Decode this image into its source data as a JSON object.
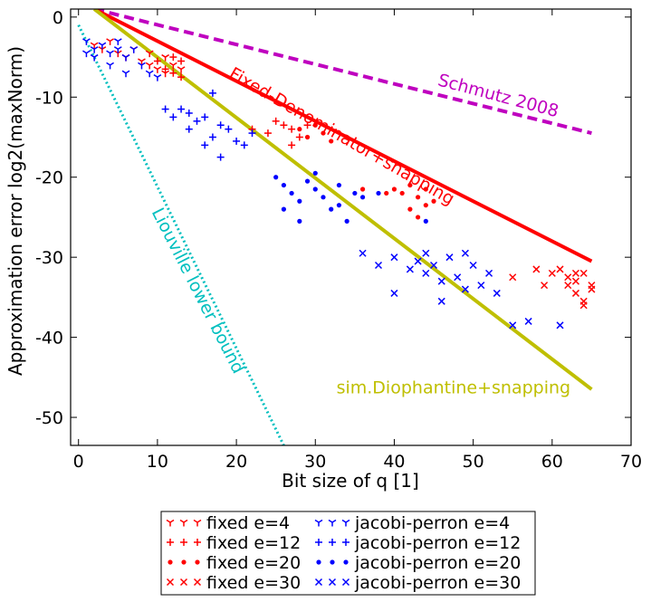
{
  "chart_data": {
    "type": "scatter",
    "title": "",
    "xlabel": "Bit size of q [1]",
    "ylabel": "Approximation error log2(maxNorm)",
    "xlim": [
      -1,
      70
    ],
    "ylim": [
      -53.5,
      1
    ],
    "xticks": [
      0,
      10,
      20,
      30,
      40,
      50,
      60,
      70
    ],
    "yticks": [
      0,
      -10,
      -20,
      -30,
      -40,
      -50
    ],
    "grid": false,
    "legend_position": "below",
    "lines": [
      {
        "name": "Schmutz 2008",
        "label": "Schmutz 2008",
        "color": "#bf00bf",
        "style": "dashed",
        "x": [
          2,
          65
        ],
        "y": [
          1,
          -14.5
        ],
        "label_x": 53,
        "label_y": -10.5,
        "label_rotate": 15
      },
      {
        "name": "Fixed-Denominator+snapping",
        "label": "Fixed-Denominator+snapping",
        "color": "#ff0000",
        "style": "solid",
        "x": [
          2,
          65
        ],
        "y": [
          1,
          -30.5
        ],
        "label_x": 33,
        "label_y": -15.5,
        "label_rotate": 30
      },
      {
        "name": "sim.Diophantine+snapping",
        "label": "sim.Diophantine+snapping",
        "color": "#bfbf00",
        "style": "solid",
        "x": [
          2,
          65
        ],
        "y": [
          1,
          -46.5
        ],
        "label_x": 47.5,
        "label_y": -47,
        "label_rotate": 0
      },
      {
        "name": "Liouville lower bound",
        "label": "Liouville lower bound",
        "color": "#00bfbf",
        "style": "dotted",
        "x": [
          0,
          26
        ],
        "y": [
          -1,
          -53.5
        ],
        "label_x": 14.5,
        "label_y": -34.5,
        "label_rotate": 63
      }
    ],
    "series": [
      {
        "name": "fixed e=4",
        "marker": "tri_down",
        "color": "#ff0000",
        "points": [
          [
            2,
            -3.5
          ],
          [
            3,
            -4
          ],
          [
            4,
            -3
          ],
          [
            5,
            -4.5
          ],
          [
            6,
            -5
          ],
          [
            7,
            -4
          ],
          [
            8,
            -5.5
          ],
          [
            9,
            -6
          ],
          [
            10,
            -6.5
          ],
          [
            11,
            -5
          ],
          [
            12,
            -6
          ],
          [
            13,
            -6.5
          ],
          [
            9,
            -4.5
          ],
          [
            11,
            -7
          ]
        ]
      },
      {
        "name": "fixed e=12",
        "marker": "plus",
        "color": "#ff0000",
        "points": [
          [
            10,
            -5.5
          ],
          [
            11,
            -6.5
          ],
          [
            12,
            -7
          ],
          [
            13,
            -5.5
          ],
          [
            22,
            -14
          ],
          [
            24,
            -14.5
          ],
          [
            25,
            -13
          ],
          [
            26,
            -13.5
          ],
          [
            27,
            -14
          ],
          [
            28,
            -15
          ],
          [
            29,
            -13.5
          ],
          [
            13,
            -7.5
          ],
          [
            12,
            -5
          ],
          [
            27,
            -16
          ]
        ]
      },
      {
        "name": "fixed e=20",
        "marker": "dot",
        "color": "#ff0000",
        "points": [
          [
            28,
            -14
          ],
          [
            29,
            -15
          ],
          [
            30,
            -13.5
          ],
          [
            31,
            -14.5
          ],
          [
            32,
            -15.5
          ],
          [
            40,
            -21.5
          ],
          [
            41,
            -22
          ],
          [
            42,
            -21
          ],
          [
            43,
            -22.5
          ],
          [
            44,
            -21.5
          ],
          [
            42,
            -24
          ],
          [
            43,
            -25
          ],
          [
            45,
            -23
          ],
          [
            39,
            -22
          ],
          [
            36,
            -21.5
          ],
          [
            44,
            -23.5
          ]
        ]
      },
      {
        "name": "fixed e=30",
        "marker": "x",
        "color": "#ff0000",
        "points": [
          [
            55,
            -32.5
          ],
          [
            58,
            -31.5
          ],
          [
            59,
            -33.5
          ],
          [
            60,
            -32
          ],
          [
            61,
            -31.5
          ],
          [
            62,
            -32.5
          ],
          [
            63,
            -33
          ],
          [
            64,
            -32
          ],
          [
            65,
            -34
          ],
          [
            63,
            -34.5
          ],
          [
            64,
            -35.5
          ],
          [
            64,
            -36
          ],
          [
            65,
            -33.5
          ],
          [
            62,
            -33.5
          ],
          [
            63,
            -32
          ]
        ]
      },
      {
        "name": "jacobi-perron e=4",
        "marker": "tri_down",
        "color": "#0000ff",
        "points": [
          [
            1,
            -3
          ],
          [
            2,
            -4
          ],
          [
            3,
            -3.5
          ],
          [
            4,
            -4.5
          ],
          [
            5,
            -3
          ],
          [
            6,
            -5
          ],
          [
            7,
            -4
          ],
          [
            8,
            -6
          ],
          [
            9,
            -7
          ],
          [
            10,
            -7.5
          ],
          [
            1,
            -4.5
          ],
          [
            2,
            -5
          ],
          [
            4,
            -6
          ],
          [
            6,
            -7
          ],
          [
            5,
            -4
          ]
        ]
      },
      {
        "name": "jacobi-perron e=12",
        "marker": "plus",
        "color": "#0000ff",
        "points": [
          [
            11,
            -11.5
          ],
          [
            12,
            -12.5
          ],
          [
            13,
            -11.5
          ],
          [
            14,
            -12
          ],
          [
            15,
            -13
          ],
          [
            16,
            -12.5
          ],
          [
            17,
            -15
          ],
          [
            18,
            -13.5
          ],
          [
            19,
            -14
          ],
          [
            20,
            -15.5
          ],
          [
            21,
            -16
          ],
          [
            22,
            -14.5
          ],
          [
            17,
            -9.5
          ],
          [
            18,
            -17.5
          ],
          [
            14,
            -14
          ],
          [
            16,
            -16
          ]
        ]
      },
      {
        "name": "jacobi-perron e=20",
        "marker": "dot",
        "color": "#0000ff",
        "points": [
          [
            25,
            -20
          ],
          [
            26,
            -21
          ],
          [
            27,
            -22
          ],
          [
            28,
            -23
          ],
          [
            29,
            -20.5
          ],
          [
            30,
            -21.5
          ],
          [
            31,
            -22.5
          ],
          [
            32,
            -24
          ],
          [
            33,
            -23.5
          ],
          [
            34,
            -25.5
          ],
          [
            35,
            -22
          ],
          [
            28,
            -25.5
          ],
          [
            30,
            -19.5
          ],
          [
            26,
            -24
          ],
          [
            36,
            -22.5
          ],
          [
            33,
            -21
          ],
          [
            38,
            -22
          ],
          [
            44,
            -25.5
          ]
        ]
      },
      {
        "name": "jacobi-perron e=30",
        "marker": "x",
        "color": "#0000ff",
        "points": [
          [
            36,
            -29.5
          ],
          [
            38,
            -31
          ],
          [
            40,
            -30
          ],
          [
            42,
            -31.5
          ],
          [
            43,
            -30.5
          ],
          [
            44,
            -32
          ],
          [
            45,
            -31
          ],
          [
            46,
            -33
          ],
          [
            47,
            -30
          ],
          [
            48,
            -32.5
          ],
          [
            49,
            -34
          ],
          [
            50,
            -31
          ],
          [
            51,
            -33.5
          ],
          [
            52,
            -32
          ],
          [
            53,
            -34.5
          ],
          [
            55,
            -38.5
          ],
          [
            57,
            -38
          ],
          [
            61,
            -38.5
          ],
          [
            40,
            -34.5
          ],
          [
            46,
            -35.5
          ],
          [
            49,
            -29.5
          ],
          [
            44,
            -29.5
          ]
        ]
      }
    ]
  },
  "legend": {
    "left": [
      {
        "label": "fixed e=4",
        "marker": "tri_down",
        "color": "#ff0000"
      },
      {
        "label": "fixed e=12",
        "marker": "plus",
        "color": "#ff0000"
      },
      {
        "label": "fixed e=20",
        "marker": "dot",
        "color": "#ff0000"
      },
      {
        "label": "fixed e=30",
        "marker": "x",
        "color": "#ff0000"
      }
    ],
    "right": [
      {
        "label": "jacobi-perron e=4",
        "marker": "tri_down",
        "color": "#0000ff"
      },
      {
        "label": "jacobi-perron e=12",
        "marker": "plus",
        "color": "#0000ff"
      },
      {
        "label": "jacobi-perron e=20",
        "marker": "dot",
        "color": "#0000ff"
      },
      {
        "label": "jacobi-perron e=30",
        "marker": "x",
        "color": "#0000ff"
      }
    ]
  }
}
